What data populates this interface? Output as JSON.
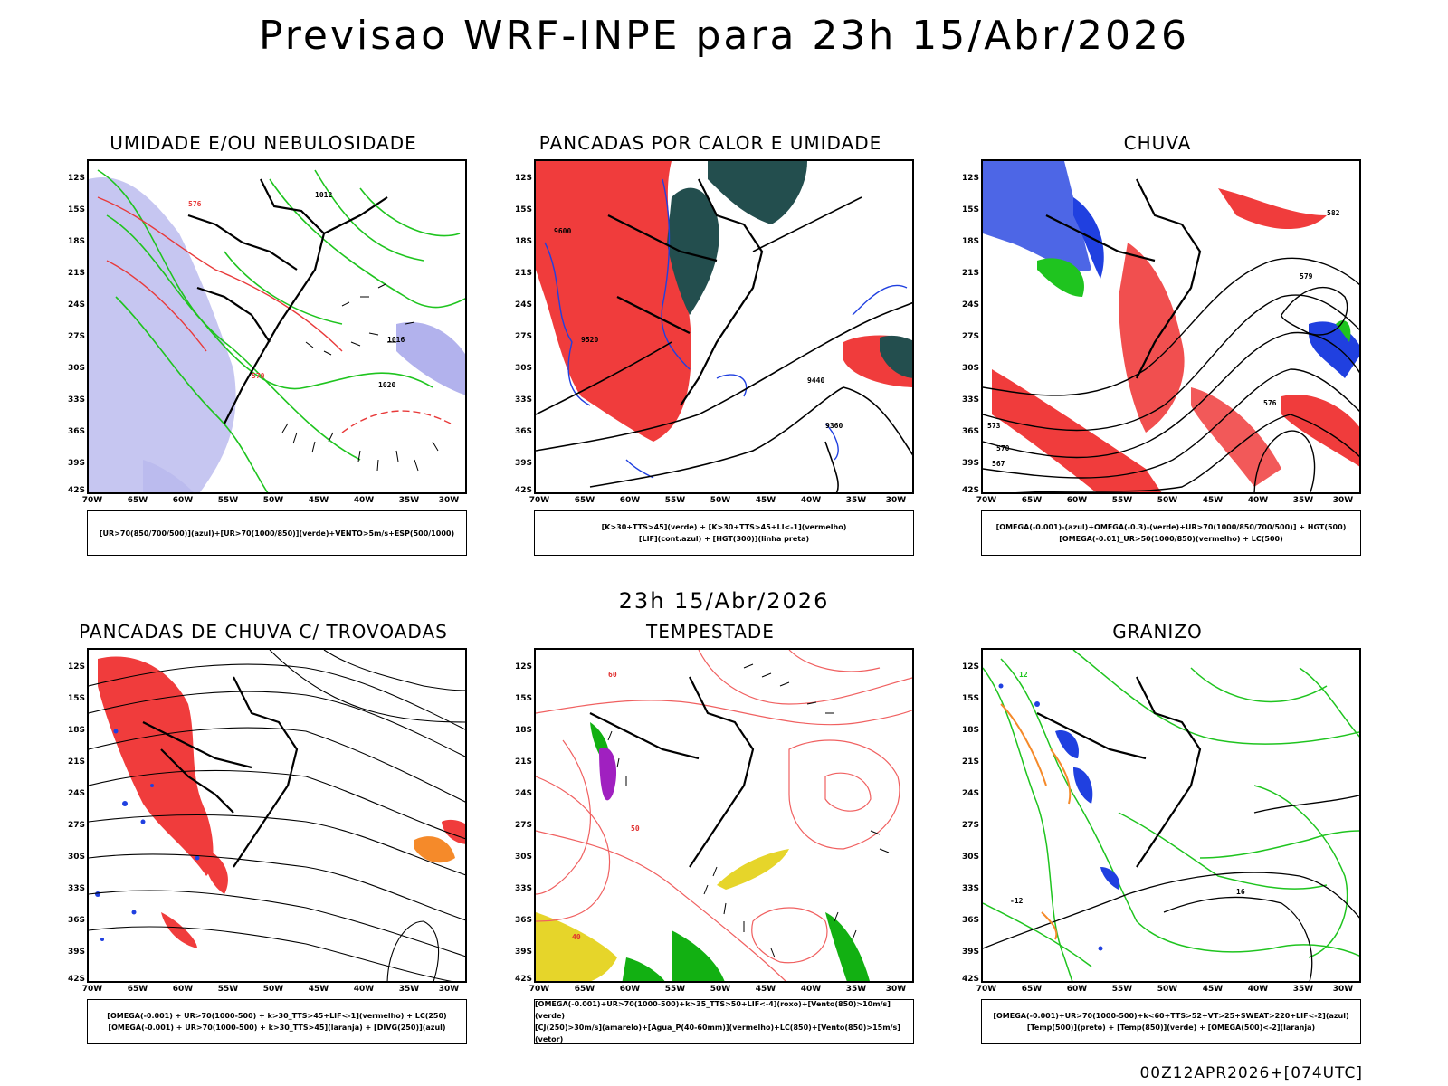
{
  "header": {
    "title": "Previsao WRF-INPE  para 23h 15/Abr/2026"
  },
  "mid_title": "23h 15/Abr/2026",
  "footer": "00Z12APR2026+[074UTC]",
  "axes": {
    "lat_labels": [
      "12S",
      "15S",
      "18S",
      "21S",
      "24S",
      "27S",
      "30S",
      "33S",
      "36S",
      "39S",
      "42S"
    ],
    "lon_labels": [
      "70W",
      "65W",
      "60W",
      "55W",
      "50W",
      "45W",
      "40W",
      "35W",
      "30W"
    ]
  },
  "panels": [
    {
      "title": "UMIDADE E/OU NEBULOSIDADE",
      "legend": [
        "[UR>70(850/700/500)](azul)+[UR>70(1000/850)](verde)+VENTO>5m/s+ESP(500/1000)"
      ],
      "contour_labels": [
        "1012",
        "1016",
        "1020",
        "570",
        "576"
      ]
    },
    {
      "title": "PANCADAS POR CALOR E UMIDADE",
      "legend": [
        "[K>30+TTS>45](verde) + [K>30+TTS>45+LI<-1](vermelho)",
        "[LIF](cont.azul) + [HGT(300)](linha preta)"
      ],
      "contour_labels": [
        "9600",
        "9520",
        "9440",
        "9360"
      ]
    },
    {
      "title": "CHUVA",
      "legend": [
        "[OMEGA(-0.001)-(azul)+OMEGA(-0.3)-(verde)+UR>70(1000/850/700/500)] + HGT(500)",
        "[OMEGA(-0.01)_UR>50(1000/850)(vermelho) + LC(500)"
      ],
      "contour_labels": [
        "582",
        "579",
        "576",
        "573",
        "570",
        "567"
      ]
    },
    {
      "title": "PANCADAS DE CHUVA C/ TROVOADAS",
      "legend": [
        "[OMEGA(-0.001) + UR>70(1000-500) + k>30_TTS>45+LIF<-1](vermelho) + LC(250)",
        "[OMEGA(-0.001) + UR>70(1000-500) + k>30_TTS>45](laranja) + [DIVG(250)](azul)"
      ],
      "contour_labels": []
    },
    {
      "title": "TEMPESTADE",
      "legend": [
        "[OMEGA(-0.001)+UR>70(1000-500)+k>35_TTS>50+LIF<-4](roxo)+[Vento(850)>10m/s](verde)",
        "[CJ(250)>30m/s](amarelo)+[Agua_P(40-60mm)](vermelho)+LC(850)+[Vento(850)>15m/s](vetor)"
      ],
      "contour_labels": [
        "40",
        "50",
        "60"
      ]
    },
    {
      "title": "GRANIZO",
      "legend": [
        "[OMEGA(-0.001)+UR>70(1000-500)+k<60+TTS>52+VT>25+SWEAT>220+LIF<-2](azul)",
        "[Temp(500)](preto) + [Temp(850)](verde) + [OMEGA(500)<-2](laranja)"
      ],
      "contour_labels": [
        "-12",
        "16",
        "12"
      ]
    }
  ]
}
